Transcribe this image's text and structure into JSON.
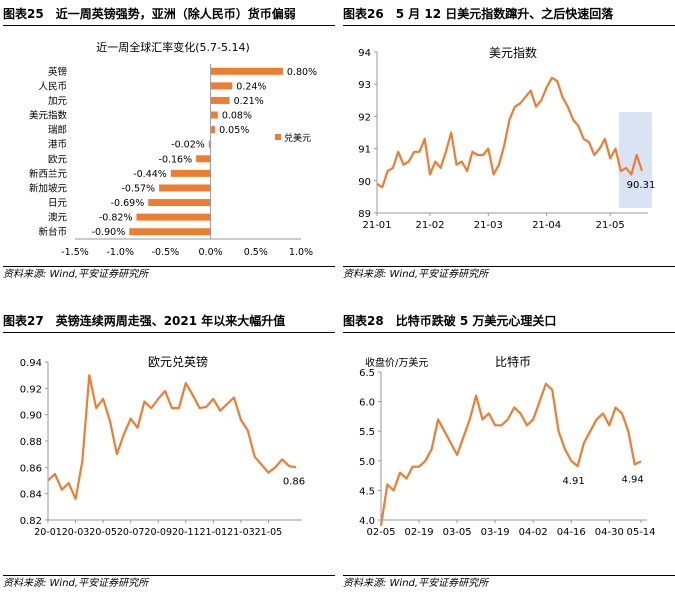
{
  "panels": [
    {
      "figure_no": "图表25",
      "title": "近一周英镑强势，亚洲（除人民币）货币偏弱",
      "source": "资料来源: Wind,平安证券研究所",
      "chart_data": {
        "type": "bar",
        "orientation": "horizontal",
        "title": "近一周全球汇率变化(5.7-5.14)",
        "legend": "兑美元",
        "categories": [
          "英镑",
          "人民币",
          "加元",
          "美元指数",
          "瑞郎",
          "港币",
          "欧元",
          "新西兰元",
          "新加坡元",
          "日元",
          "澳元",
          "新台币"
        ],
        "values": [
          0.8,
          0.24,
          0.21,
          0.08,
          0.05,
          -0.02,
          -0.16,
          -0.44,
          -0.57,
          -0.69,
          -0.82,
          -0.9
        ],
        "value_labels": [
          "0.80%",
          "0.24%",
          "0.21%",
          "0.08%",
          "0.05%",
          "-0.02%",
          "-0.16%",
          "-0.44%",
          "-0.57%",
          "-0.69%",
          "-0.82%",
          "-0.90%"
        ],
        "xlim": [
          -1.5,
          1.0
        ],
        "xticks": [
          -1.5,
          -1.0,
          -0.5,
          0.0,
          0.5,
          1.0
        ],
        "xtick_labels": [
          "-1.5%",
          "-1.0%",
          "-0.5%",
          "0.0%",
          "0.5%",
          "1.0%"
        ],
        "color": "#ED7D31"
      }
    },
    {
      "figure_no": "图表26",
      "title": "5 月 12 日美元指数蹿升、之后快速回落",
      "source": "资料来源: Wind,平安证券研究所",
      "chart_data": {
        "type": "line",
        "title": "美元指数",
        "series": [
          {
            "name": "美元指数",
            "values": [
              89.9,
              89.8,
              90.3,
              90.4,
              90.9,
              90.5,
              90.6,
              90.9,
              90.9,
              91.3,
              90.2,
              90.6,
              90.4,
              90.9,
              91.5,
              90.5,
              90.6,
              90.3,
              90.9,
              90.8,
              90.8,
              91.0,
              90.2,
              90.5,
              91.1,
              91.9,
              92.3,
              92.4,
              92.6,
              92.8,
              92.3,
              92.5,
              92.9,
              93.2,
              93.1,
              92.6,
              92.3,
              91.9,
              91.7,
              91.3,
              91.2,
              90.8,
              91.0,
              91.3,
              90.7,
              91.0,
              90.3,
              90.4,
              90.2,
              90.8,
              90.31
            ]
          }
        ],
        "x_tick_labels": [
          "21-01",
          "21-02",
          "21-03",
          "21-04",
          "21-05"
        ],
        "x_tick_index": [
          0,
          10,
          21,
          32,
          44
        ],
        "ylim": [
          89,
          94
        ],
        "yticks": [
          89,
          90,
          91,
          92,
          93,
          94
        ],
        "annotation": "90.31",
        "color": "#ED7D31",
        "highlight_color": "#DAE3F3"
      }
    },
    {
      "figure_no": "图表27",
      "title": "英镑连续两周走强、2021 年以来大幅升值",
      "source": "资料来源: Wind,平安证券研究所",
      "chart_data": {
        "type": "line",
        "title": "欧元兑英镑",
        "series": [
          {
            "name": "欧元兑英镑",
            "values": [
              0.85,
              0.855,
              0.843,
              0.848,
              0.836,
              0.865,
              0.93,
              0.905,
              0.912,
              0.895,
              0.87,
              0.885,
              0.897,
              0.89,
              0.91,
              0.905,
              0.912,
              0.918,
              0.905,
              0.905,
              0.924,
              0.915,
              0.905,
              0.906,
              0.912,
              0.903,
              0.908,
              0.913,
              0.896,
              0.888,
              0.868,
              0.862,
              0.856,
              0.86,
              0.866,
              0.861,
              0.86
            ]
          }
        ],
        "x_tick_labels": [
          "20-01",
          "20-03",
          "20-05",
          "20-07",
          "20-09",
          "20-11",
          "21-01",
          "21-03",
          "21-05"
        ],
        "x_tick_index": [
          0,
          4,
          8,
          12,
          16,
          20,
          24,
          28,
          32
        ],
        "ylim": [
          0.82,
          0.94
        ],
        "yticks": [
          0.82,
          0.84,
          0.86,
          0.88,
          0.9,
          0.92,
          0.94
        ],
        "ytick_labels": [
          "0.82",
          "0.84",
          "0.86",
          "0.88",
          "0.90",
          "0.92",
          "0.94"
        ],
        "annotation": "0.86",
        "color": "#ED7D31"
      }
    },
    {
      "figure_no": "图表28",
      "title": "比特币跌破 5 万美元心理关口",
      "source": "资料来源: Wind,平安证券研究所",
      "chart_data": {
        "type": "line",
        "title": "比特币",
        "ylabel": "收盘价/万美元",
        "series": [
          {
            "name": "比特币",
            "values": [
              3.9,
              4.6,
              4.5,
              4.8,
              4.7,
              4.9,
              4.9,
              5.0,
              5.2,
              5.7,
              5.5,
              5.3,
              5.1,
              5.4,
              5.7,
              6.1,
              5.7,
              5.8,
              5.6,
              5.6,
              5.7,
              5.9,
              5.8,
              5.6,
              5.7,
              6.0,
              6.3,
              6.2,
              5.5,
              5.2,
              5.0,
              4.91,
              5.3,
              5.5,
              5.7,
              5.8,
              5.6,
              5.9,
              5.8,
              5.5,
              4.94,
              4.99
            ]
          }
        ],
        "x_tick_labels": [
          "02-05",
          "02-19",
          "03-05",
          "03-19",
          "04-02",
          "04-16",
          "04-30",
          "05-14"
        ],
        "x_tick_index": [
          0,
          6,
          12,
          18,
          24,
          30,
          36,
          41
        ],
        "ylim": [
          4.0,
          6.5
        ],
        "yticks": [
          4.0,
          4.5,
          5.0,
          5.5,
          6.0,
          6.5
        ],
        "ytick_labels": [
          "4.0",
          "4.5",
          "5.0",
          "5.5",
          "6.0",
          "6.5"
        ],
        "annotations": [
          "4.91",
          "4.94"
        ],
        "color": "#ED7D31"
      }
    }
  ]
}
